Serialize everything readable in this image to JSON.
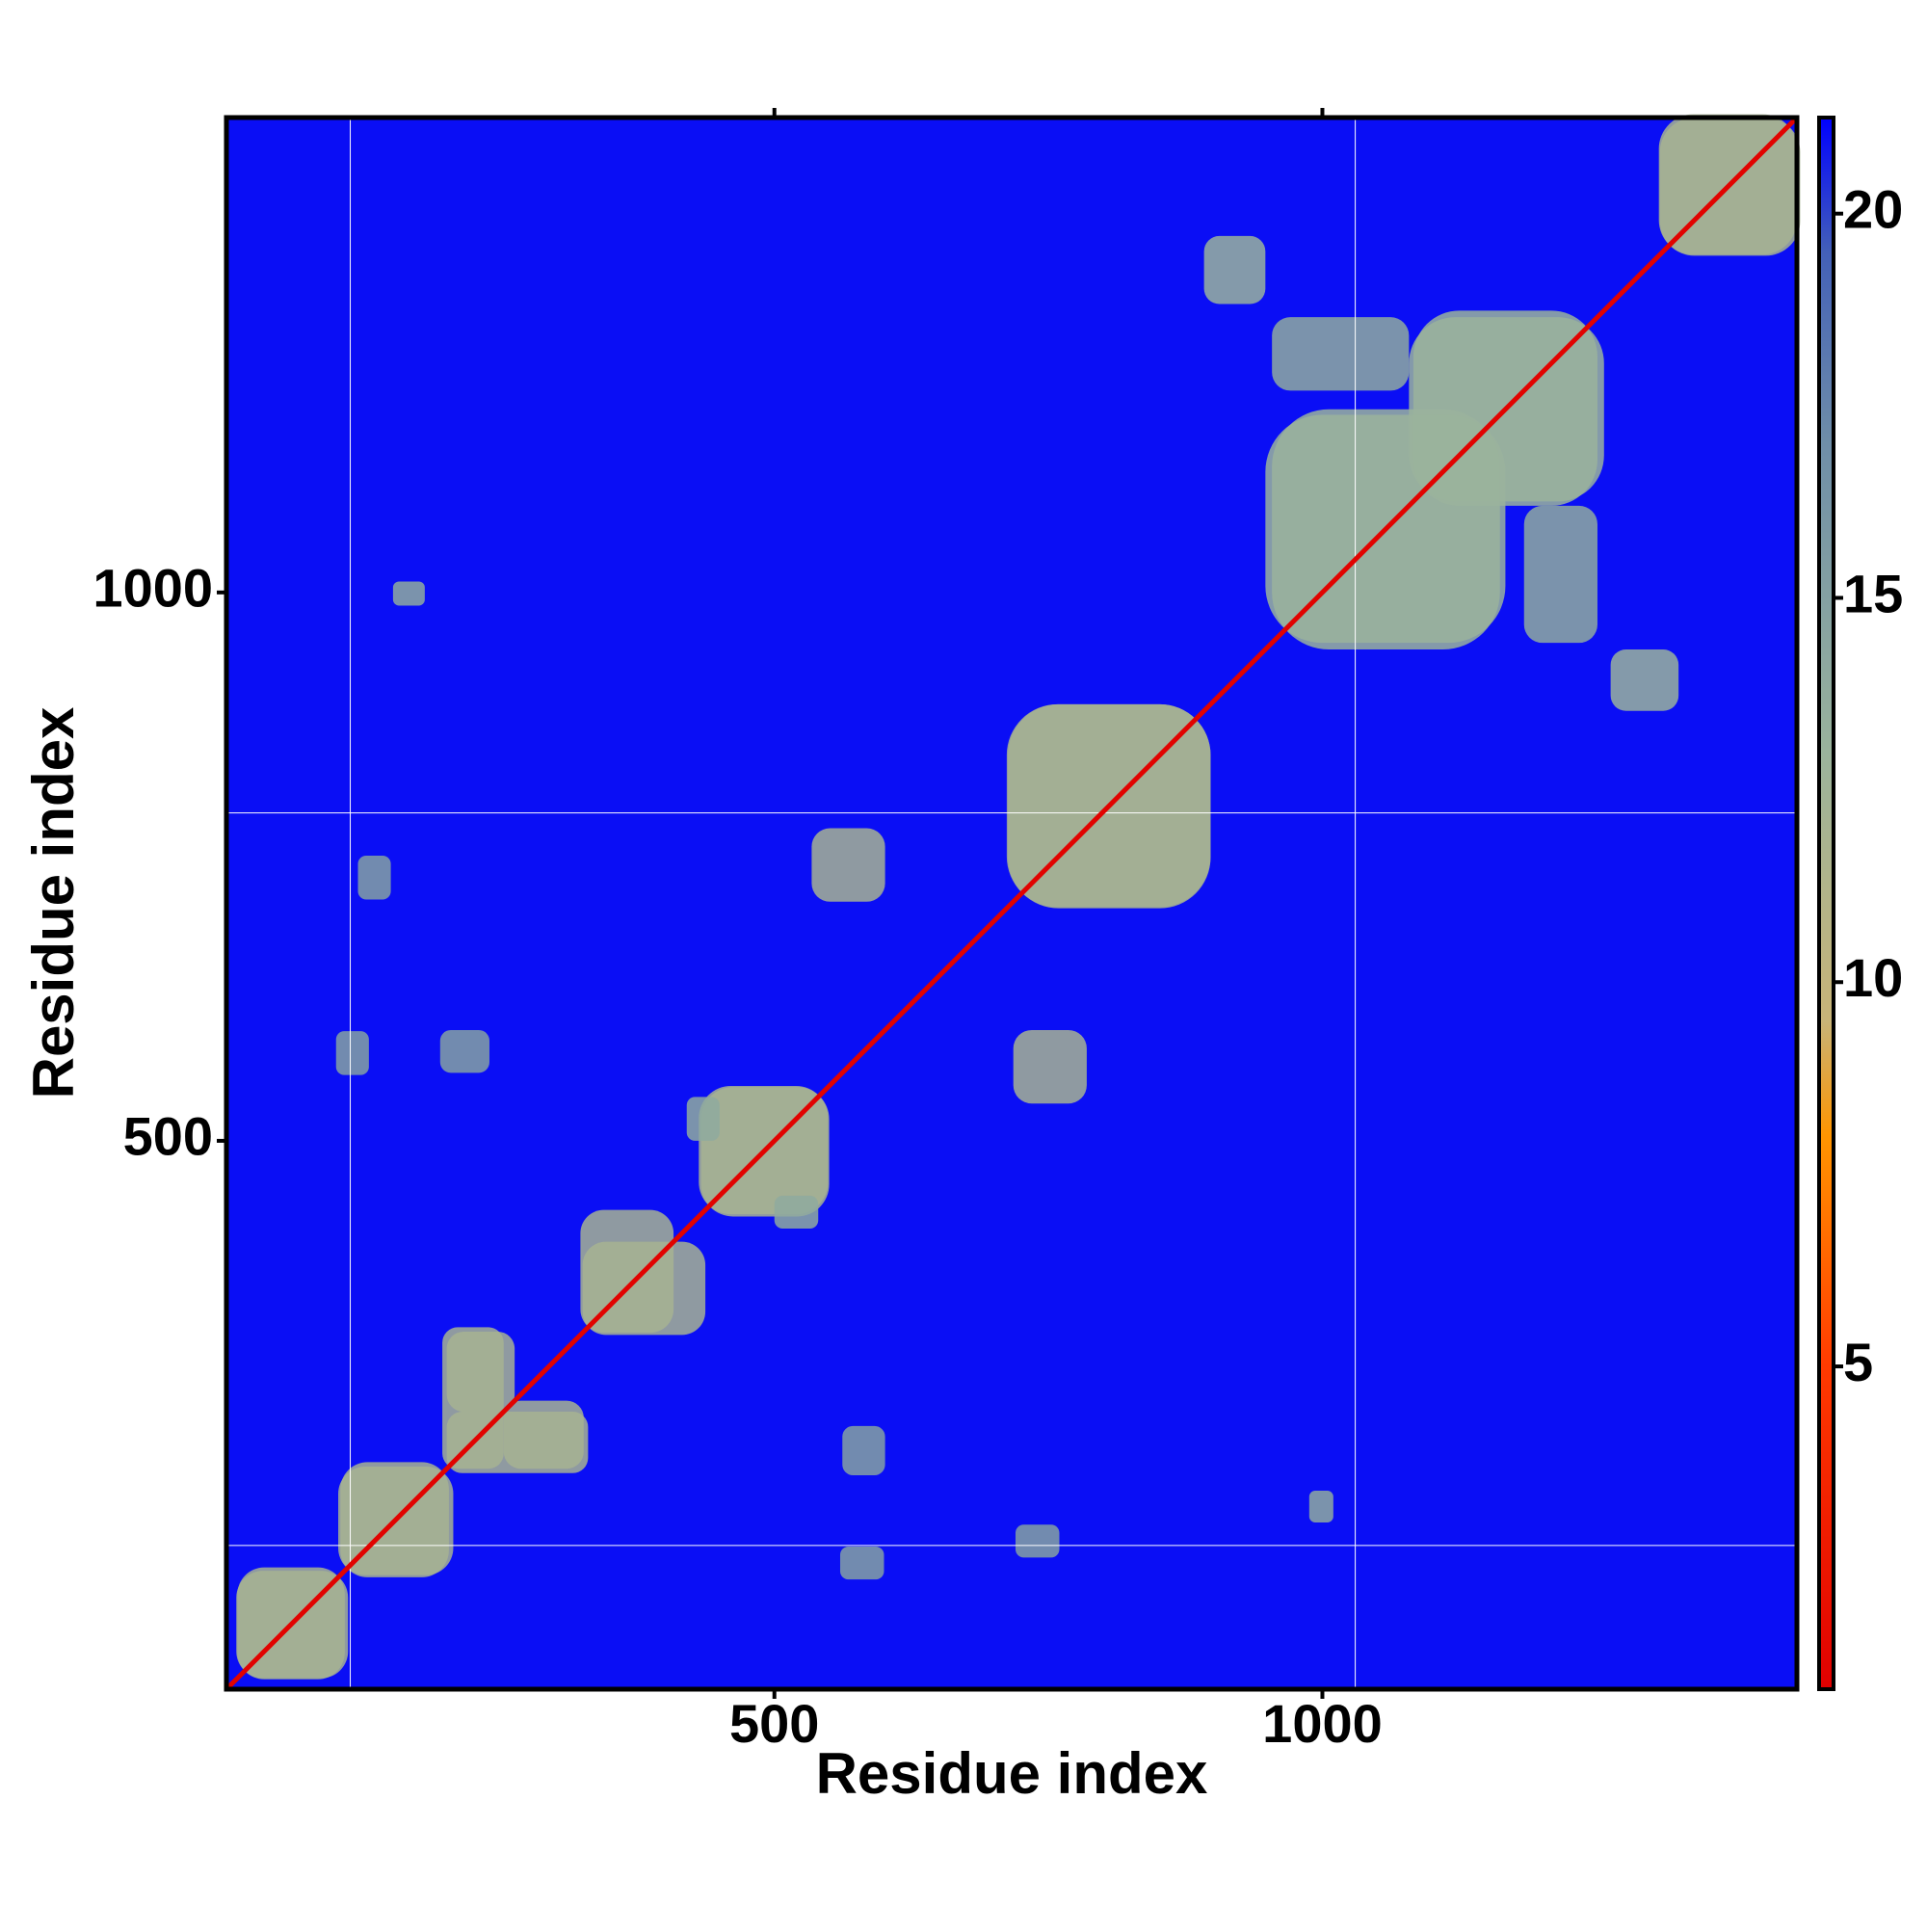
{
  "chart_data": {
    "type": "heatmap",
    "x_label": "Residue index",
    "y_label": "Residue index",
    "xlim": [
      0,
      1433
    ],
    "ylim": [
      0,
      1433
    ],
    "xticks": [
      500,
      1000
    ],
    "yticks": [
      500,
      1000
    ],
    "grid_lines": {
      "x": [
        113,
        1030
      ],
      "y": [
        131,
        799
      ]
    },
    "symmetric": true,
    "background_value": 21,
    "diagonal_value": 1,
    "color_scale": [
      {
        "value": 0.8,
        "color": "#e00000"
      },
      {
        "value": 5,
        "color": "#ff3a00"
      },
      {
        "value": 8,
        "color": "#ff9500"
      },
      {
        "value": 9.5,
        "color": "#c8b478"
      },
      {
        "value": 13,
        "color": "#9ab39c"
      },
      {
        "value": 17,
        "color": "#6f8ea8"
      },
      {
        "value": 19.5,
        "color": "#4360b8"
      },
      {
        "value": 21.25,
        "color": "#0000ff"
      }
    ],
    "clim": [
      0.8,
      21.25
    ],
    "cticks": [
      5,
      10,
      15,
      20
    ],
    "regions": [
      {
        "x": [
          9,
          111
        ],
        "y": [
          10,
          108
        ],
        "value": 12
      },
      {
        "x": [
          104,
          203
        ],
        "y": [
          102,
          207
        ],
        "value": 12
      },
      {
        "x": [
          197,
          253
        ],
        "y": [
          201,
          330
        ],
        "value": 12
      },
      {
        "x": [
          253,
          326
        ],
        "y": [
          201,
          263
        ],
        "value": 12
      },
      {
        "x": [
          323,
          408
        ],
        "y": [
          325,
          437
        ],
        "value": 12
      },
      {
        "x": [
          433,
          550
        ],
        "y": [
          431,
          549
        ],
        "value": 12
      },
      {
        "x": [
          534,
          601
        ],
        "y": [
          718,
          785
        ],
        "value": 12
      },
      {
        "x": [
          713,
          898
        ],
        "y": [
          712,
          898
        ],
        "value": 12
      },
      {
        "x": [
          948,
          1167
        ],
        "y": [
          954,
          1162
        ],
        "value": 13
      },
      {
        "x": [
          1083,
          1251
        ],
        "y": [
          1079,
          1257
        ],
        "value": 13
      },
      {
        "x": [
          1184,
          1251
        ],
        "y": [
          954,
          1079
        ],
        "value": 14
      },
      {
        "x": [
          1307,
          1433
        ],
        "y": [
          1308,
          1436
        ],
        "value": 12
      },
      {
        "x": [
          892,
          948
        ],
        "y": [
          1263,
          1325
        ],
        "value": 13
      },
      {
        "x": [
          152,
          181
        ],
        "y": [
          988,
          1010
        ],
        "value": 14
      },
      {
        "x": [
          562,
          601
        ],
        "y": [
          195,
          240
        ],
        "value": 15
      },
      {
        "x": [
          720,
          760
        ],
        "y": [
          120,
          150
        ],
        "value": 15
      },
      {
        "x": [
          420,
          450
        ],
        "y": [
          500,
          540
        ],
        "value": 14
      },
      {
        "x": [
          100,
          130
        ],
        "y": [
          560,
          600
        ],
        "value": 15
      }
    ]
  }
}
